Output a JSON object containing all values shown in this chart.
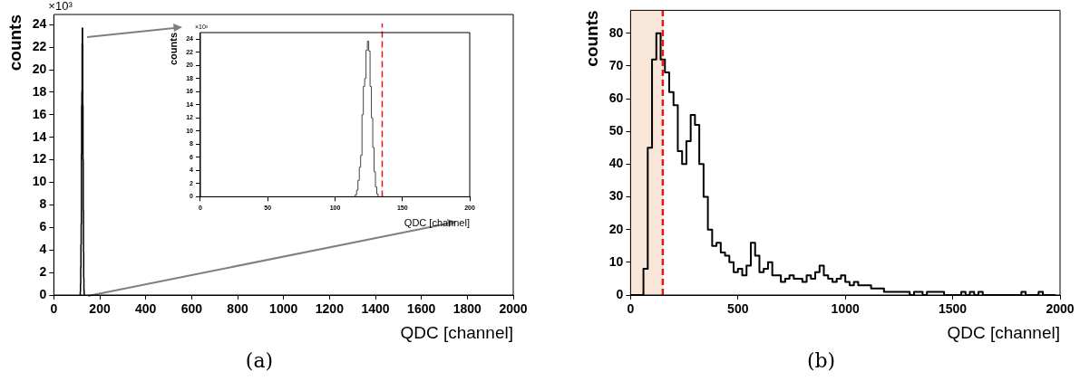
{
  "chart_data": [
    {
      "type": "step",
      "title": "(a)",
      "xlabel": "QDC [channel]",
      "ylabel": "counts",
      "annotations": [
        "×10³"
      ],
      "x": [
        115,
        116,
        117,
        118,
        119,
        120,
        121,
        122,
        123,
        124,
        125,
        126,
        127,
        128,
        129,
        130,
        131,
        132,
        133
      ],
      "values": [
        0,
        0.3,
        1,
        2.5,
        4.5,
        6.3,
        12.5,
        16.8,
        18,
        22.3,
        23.7,
        22.2,
        16.8,
        12,
        7.5,
        3.8,
        1.5,
        0.4,
        0
      ],
      "color": "#000000",
      "xlim": [
        0,
        2000
      ],
      "xticks": [
        0,
        200,
        400,
        600,
        800,
        1000,
        1200,
        1400,
        1600,
        1800,
        2000
      ],
      "ylim": [
        0,
        24.9
      ],
      "yticks": [
        0,
        2,
        4,
        6,
        8,
        10,
        12,
        14,
        16,
        18,
        20,
        22,
        24
      ],
      "grid": false,
      "legend": false
    },
    {
      "type": "step",
      "xlabel": "QDC [channel]",
      "ylabel": "counts",
      "annotations": [
        "×10³"
      ],
      "x": [
        115,
        116,
        117,
        118,
        119,
        120,
        121,
        122,
        123,
        124,
        125,
        126,
        127,
        128,
        129,
        130,
        131,
        132,
        133
      ],
      "values": [
        0,
        0.3,
        1,
        2.5,
        4.5,
        6.3,
        12.5,
        16.8,
        18,
        22.3,
        23.7,
        22.2,
        16.8,
        12,
        7.5,
        3.8,
        1.5,
        0.4,
        0
      ],
      "color": "#444444",
      "xlim": [
        0,
        200
      ],
      "xticks": [
        0,
        50,
        100,
        150,
        200
      ],
      "ylim": [
        0,
        25
      ],
      "yticks": [
        0,
        2,
        4,
        6,
        8,
        10,
        12,
        14,
        16,
        18,
        20,
        22,
        24
      ],
      "grid": false,
      "legend": false,
      "ref_lines": [
        {
          "axis": "x",
          "value": 135,
          "color": "#e8141b",
          "line_style": "dashed"
        }
      ]
    },
    {
      "type": "step",
      "title": "(b)",
      "xlabel": "QDC [channel]",
      "ylabel": "counts",
      "x": [
        0,
        20,
        40,
        60,
        80,
        100,
        120,
        140,
        160,
        180,
        200,
        220,
        240,
        260,
        280,
        300,
        320,
        340,
        360,
        380,
        400,
        420,
        440,
        460,
        480,
        500,
        520,
        540,
        560,
        580,
        600,
        620,
        640,
        660,
        680,
        700,
        720,
        740,
        760,
        780,
        800,
        820,
        840,
        860,
        880,
        900,
        920,
        940,
        960,
        980,
        1000,
        1020,
        1040,
        1060,
        1080,
        1100,
        1120,
        1140,
        1160,
        1180,
        1200,
        1220,
        1240,
        1260,
        1280,
        1300,
        1320,
        1340,
        1360,
        1380,
        1400,
        1420,
        1440,
        1460,
        1480,
        1500,
        1520,
        1540,
        1560,
        1580,
        1600,
        1620,
        1640,
        1660,
        1680,
        1700,
        1720,
        1740,
        1760,
        1780,
        1800,
        1820,
        1840,
        1860,
        1880,
        1900,
        1920,
        1940,
        1960,
        1980
      ],
      "values": [
        0,
        0,
        0,
        0,
        8,
        45,
        72,
        80,
        72,
        68,
        62,
        58,
        44,
        40,
        47,
        55,
        52,
        40,
        30,
        20,
        15,
        16,
        13,
        12,
        10,
        7,
        8,
        6,
        9,
        16,
        12,
        7,
        8,
        10,
        6,
        6,
        4,
        5,
        6,
        5,
        5,
        4,
        6,
        5,
        7,
        9,
        6,
        5,
        4,
        5,
        6,
        4,
        3,
        4,
        3,
        3,
        3,
        2,
        2,
        2,
        1,
        1,
        1,
        1,
        1,
        1,
        0,
        1,
        1,
        0,
        1,
        1,
        1,
        1,
        0,
        0,
        0,
        0,
        1,
        0,
        1,
        0,
        1,
        0,
        0,
        0,
        0,
        0,
        0,
        0,
        0,
        0,
        1,
        0,
        0,
        0,
        1,
        0,
        0,
        0
      ],
      "color": "#000000",
      "xlim": [
        0,
        2000
      ],
      "xticks": [
        0,
        500,
        1000,
        1500,
        2000
      ],
      "ylim": [
        0,
        87
      ],
      "yticks": [
        0,
        10,
        20,
        30,
        40,
        50,
        60,
        70,
        80
      ],
      "grid": false,
      "legend": false,
      "bands": [
        {
          "axis": "x",
          "from": 0,
          "to": 150,
          "color": "#f8e6d8"
        }
      ],
      "ref_lines": [
        {
          "axis": "x",
          "value": 150,
          "color": "#e8141b",
          "line_style": "dashed"
        }
      ]
    }
  ]
}
